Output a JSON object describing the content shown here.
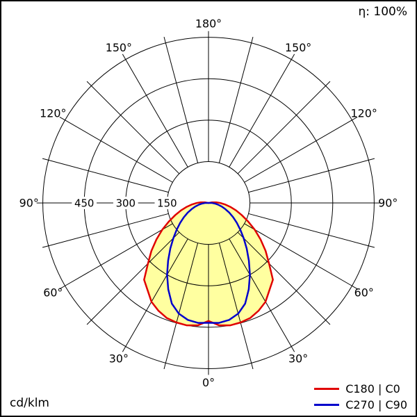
{
  "header": {
    "efficiency_label": "η: 100%"
  },
  "footer": {
    "unit_label": "cd/klm"
  },
  "legend": [
    {
      "label": "C180 | C0",
      "color": "#e00000"
    },
    {
      "label": "C270 | C90",
      "color": "#0000cc"
    }
  ],
  "chart_data": {
    "type": "polar",
    "subtype": "luminous-intensity-distribution",
    "unit": "cd/klm",
    "efficiency": "100%",
    "max_value": 600,
    "ring_values": [
      150,
      300,
      450,
      600
    ],
    "ring_label_values": [
      450,
      300,
      150
    ],
    "angle_labels_deg": [
      0,
      30,
      60,
      90,
      120,
      150,
      180
    ],
    "spoke_step_deg": 15,
    "grid_color": "#000000",
    "series": [
      {
        "name": "C180 | C0",
        "color": "#e00000",
        "fill": "#ffffa0",
        "gamma_deg": [
          0,
          5,
          10,
          15,
          20,
          25,
          30,
          35,
          40,
          45,
          50,
          55,
          60,
          65,
          70,
          75,
          80,
          85,
          90,
          95,
          100,
          105
        ],
        "values": [
          427,
          445,
          450,
          448,
          443,
          430,
          413,
          385,
          363,
          310,
          270,
          230,
          193,
          158,
          128,
          103,
          80,
          60,
          43,
          28,
          13,
          0
        ]
      },
      {
        "name": "C270 | C90",
        "color": "#0000cc",
        "fill": "none",
        "gamma_deg": [
          0,
          5,
          10,
          15,
          20,
          25,
          30,
          35,
          40,
          45,
          50,
          55,
          60,
          65,
          70,
          75,
          80,
          85,
          90,
          95
        ],
        "values": [
          434,
          436,
          430,
          415,
          388,
          345,
          300,
          255,
          215,
          180,
          150,
          125,
          103,
          83,
          65,
          50,
          35,
          23,
          13,
          0
        ]
      }
    ]
  }
}
